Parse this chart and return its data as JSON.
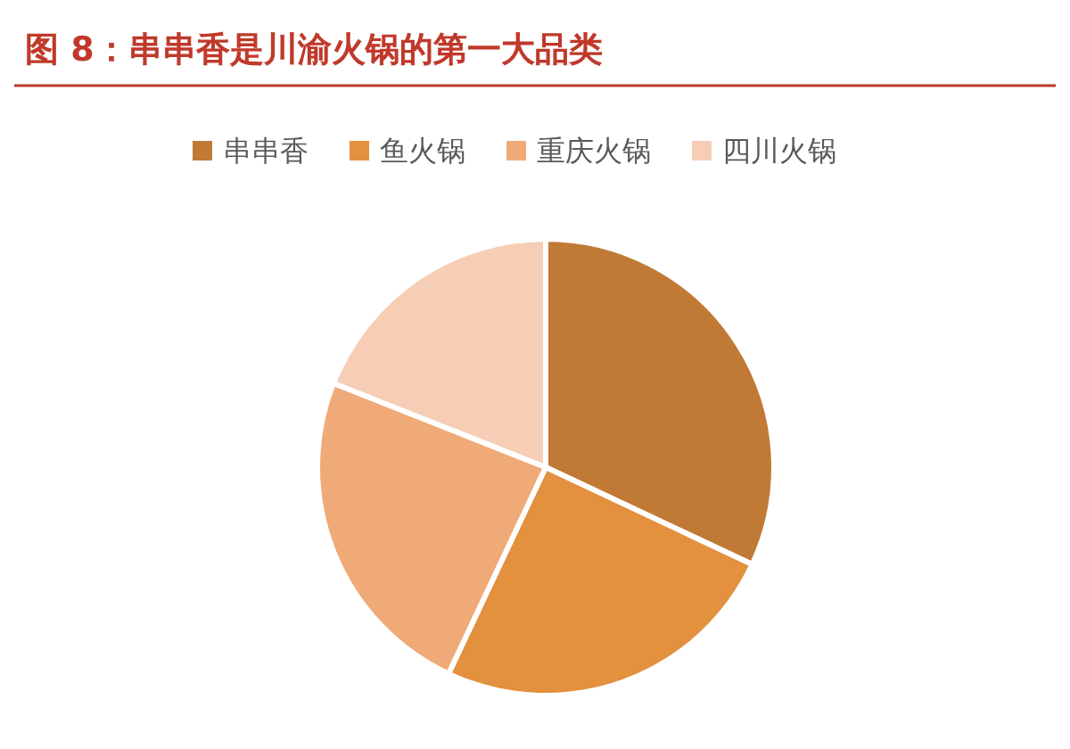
{
  "chart_data": {
    "type": "pie",
    "title": "图 8：串串香是川渝火锅的第一大品类",
    "categories": [
      "串串香",
      "鱼火锅",
      "重庆火锅",
      "四川火锅"
    ],
    "values": [
      32,
      25,
      24,
      19
    ],
    "colors": [
      "#c17a36",
      "#e3903f",
      "#f0aa78",
      "#f6cdb5"
    ],
    "legend": "top"
  }
}
